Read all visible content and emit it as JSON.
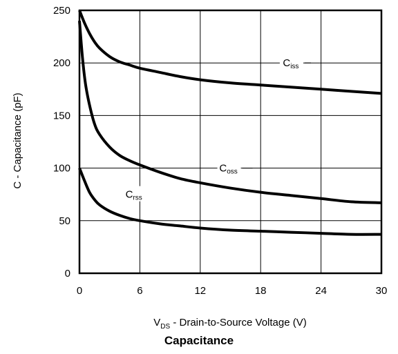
{
  "chart_data": {
    "type": "line",
    "title": "Capacitance",
    "xlabel_main": "V",
    "xlabel_sub": "DS",
    "xlabel_rest": " - Drain-to-Source Voltage (V)",
    "ylabel": "C - Capacitance (pF)",
    "xlim": [
      0,
      30
    ],
    "ylim": [
      0,
      250
    ],
    "xticks": [
      0,
      6,
      12,
      18,
      24,
      30
    ],
    "yticks": [
      0,
      50,
      100,
      150,
      200,
      250
    ],
    "grid": true,
    "series": [
      {
        "name": "Ciss",
        "main": "C",
        "sub": "iss",
        "x": [
          0,
          0.5,
          1,
          1.5,
          2,
          3,
          4,
          5,
          6,
          8,
          10,
          12,
          15,
          18,
          21,
          24,
          27,
          30
        ],
        "y": [
          250,
          238,
          228,
          220,
          214,
          206,
          201,
          198,
          195,
          191,
          187,
          184,
          181,
          179,
          177,
          175,
          173,
          171
        ]
      },
      {
        "name": "Coss",
        "main": "C",
        "sub": "oss",
        "x": [
          0,
          0.3,
          0.6,
          1,
          1.5,
          2,
          3,
          4,
          5,
          6,
          8,
          10,
          12,
          15,
          18,
          21,
          24,
          27,
          30
        ],
        "y": [
          240,
          205,
          180,
          160,
          142,
          132,
          120,
          112,
          107,
          103,
          96,
          90,
          86,
          81,
          77,
          74,
          71,
          68,
          67
        ]
      },
      {
        "name": "Crss",
        "main": "C",
        "sub": "rss",
        "x": [
          0,
          0.5,
          1,
          1.5,
          2,
          3,
          4,
          5,
          6,
          8,
          10,
          12,
          15,
          18,
          21,
          24,
          27,
          30
        ],
        "y": [
          100,
          88,
          77,
          70,
          65,
          59,
          55,
          52,
          50,
          47,
          45,
          43,
          41,
          40,
          39,
          38,
          37,
          37
        ]
      }
    ],
    "annotations": [
      {
        "series": 0,
        "x": 21,
        "y": 200,
        "line_to_x": 23
      },
      {
        "series": 1,
        "x": 14.8,
        "y": 100,
        "line_to_x": 17.2
      },
      {
        "series": 2,
        "x": 5.4,
        "y": 75,
        "line_to_x": null
      }
    ]
  }
}
